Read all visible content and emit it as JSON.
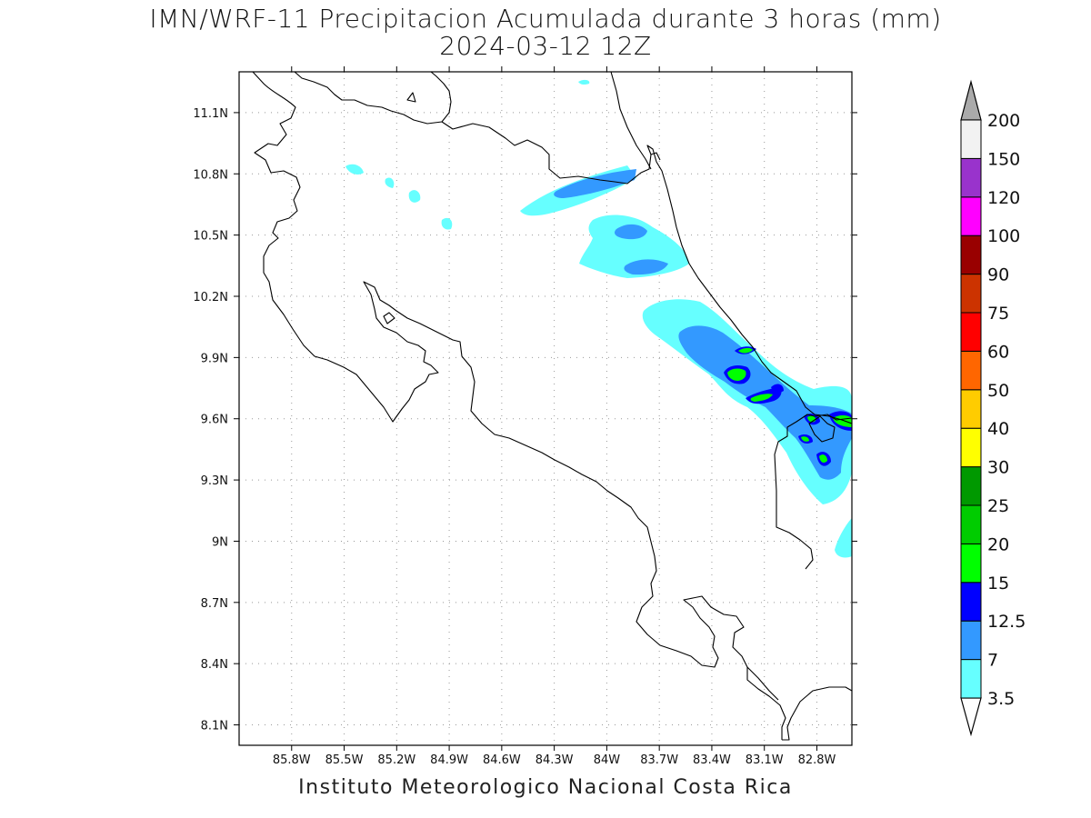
{
  "title": "IMN/WRF-11 Precipitacion Acumulada durante 3 horas (mm)",
  "subtitle": "2024-03-12 12Z",
  "footer": "Instituto Meteorologico Nacional Costa Rica",
  "map": {
    "lon_range": [
      -86.1,
      -82.6
    ],
    "lat_range": [
      8.0,
      11.3
    ],
    "lon_ticks": [
      "85.8W",
      "85.5W",
      "85.2W",
      "84.9W",
      "84.6W",
      "84.3W",
      "84W",
      "83.7W",
      "83.4W",
      "83.1W",
      "82.8W"
    ],
    "lat_ticks": [
      "8.1N",
      "8.4N",
      "8.7N",
      "9N",
      "9.3N",
      "9.6N",
      "9.9N",
      "10.2N",
      "10.5N",
      "10.8N",
      "11.1N"
    ],
    "grid": "dotted"
  },
  "colorbar": {
    "labels": [
      "3.5",
      "7",
      "12.5",
      "15",
      "20",
      "25",
      "30",
      "40",
      "50",
      "60",
      "75",
      "90",
      "100",
      "120",
      "150",
      "200"
    ],
    "colors": [
      "#66ffff",
      "#3399ff",
      "#0000ff",
      "#00ff00",
      "#00cc00",
      "#009900",
      "#ffff00",
      "#ffcc00",
      "#ff6600",
      "#ff0000",
      "#cc3300",
      "#990000",
      "#ff00ff",
      "#9933cc",
      "#f2f2f2",
      "#aaaaaa"
    ],
    "units": "mm"
  }
}
